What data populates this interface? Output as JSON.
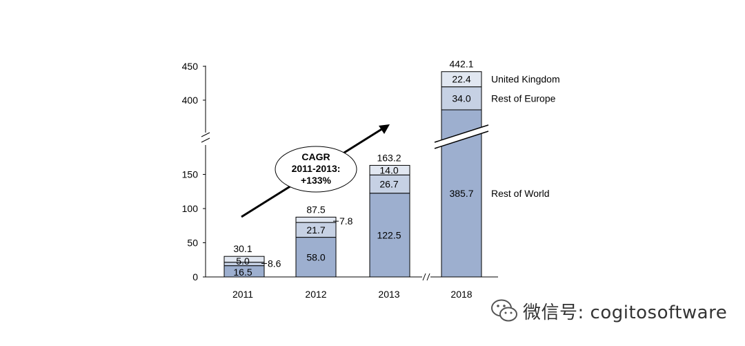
{
  "chart_data": {
    "type": "bar",
    "stacked": true,
    "categories": [
      "2011",
      "2012",
      "2013",
      "2018"
    ],
    "series": [
      {
        "name": "Rest of World",
        "values": [
          16.5,
          58.0,
          122.5,
          385.7
        ],
        "labels": [
          "16.5",
          "58.0",
          "122.5",
          "385.7"
        ],
        "color": "#9dafcf"
      },
      {
        "name": "Rest of Europe",
        "values": [
          5.0,
          21.7,
          26.7,
          34.0
        ],
        "labels": [
          "5.0",
          "21.7",
          "26.7",
          "34.0"
        ],
        "color": "#c6d1e4"
      },
      {
        "name": "United Kingdom",
        "values": [
          8.6,
          7.8,
          14.0,
          22.4
        ],
        "labels": [
          "8.6",
          "7.8",
          "14.0",
          "22.4"
        ],
        "color": "#e1e7f1"
      }
    ],
    "totals": [
      "30.1",
      "87.5",
      "163.2",
      "442.1"
    ],
    "y_axis": {
      "ticks_lower": [
        0,
        50,
        100,
        150
      ],
      "ticks_upper": [
        400,
        450
      ],
      "axis_break": true
    },
    "legend": [
      "United Kingdom",
      "Rest of Europe",
      "Rest of World"
    ],
    "annotation": {
      "lines": [
        "CAGR",
        "2011-2013:",
        "+133%"
      ]
    }
  },
  "watermark": {
    "icon": "wechat-icon",
    "text": "微信号: cogitosoftware"
  }
}
